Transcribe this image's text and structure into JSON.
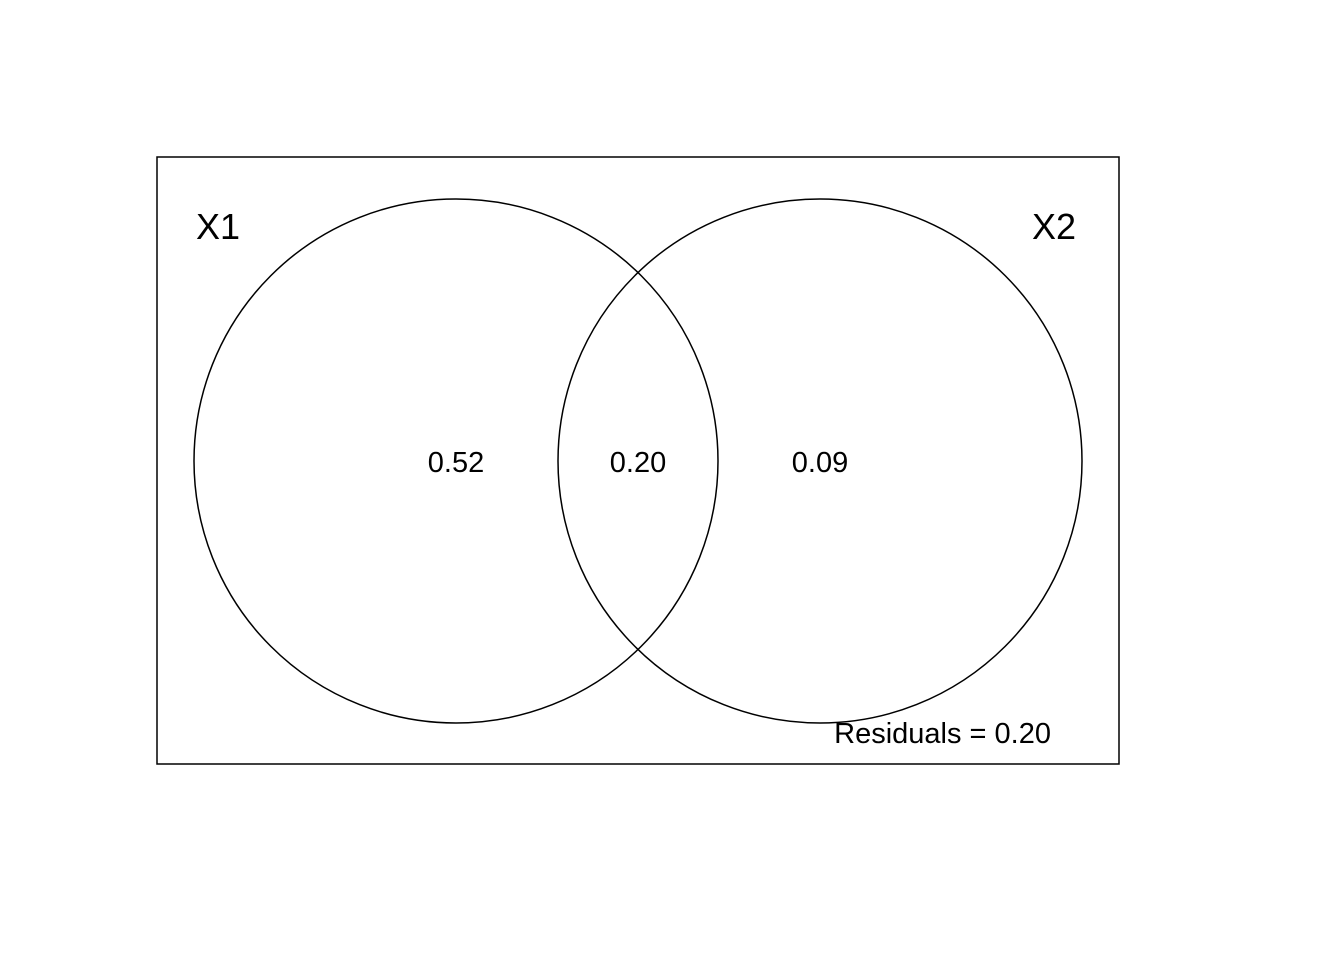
{
  "diagram": {
    "type": "venn",
    "sets": [
      {
        "name": "X1"
      },
      {
        "name": "X2"
      }
    ],
    "regions": {
      "x1_only": "0.52",
      "overlap": "0.20",
      "x2_only": "0.09"
    },
    "residuals_label": "Residuals = 0.20",
    "line_color": "#000000",
    "background": "#ffffff"
  }
}
